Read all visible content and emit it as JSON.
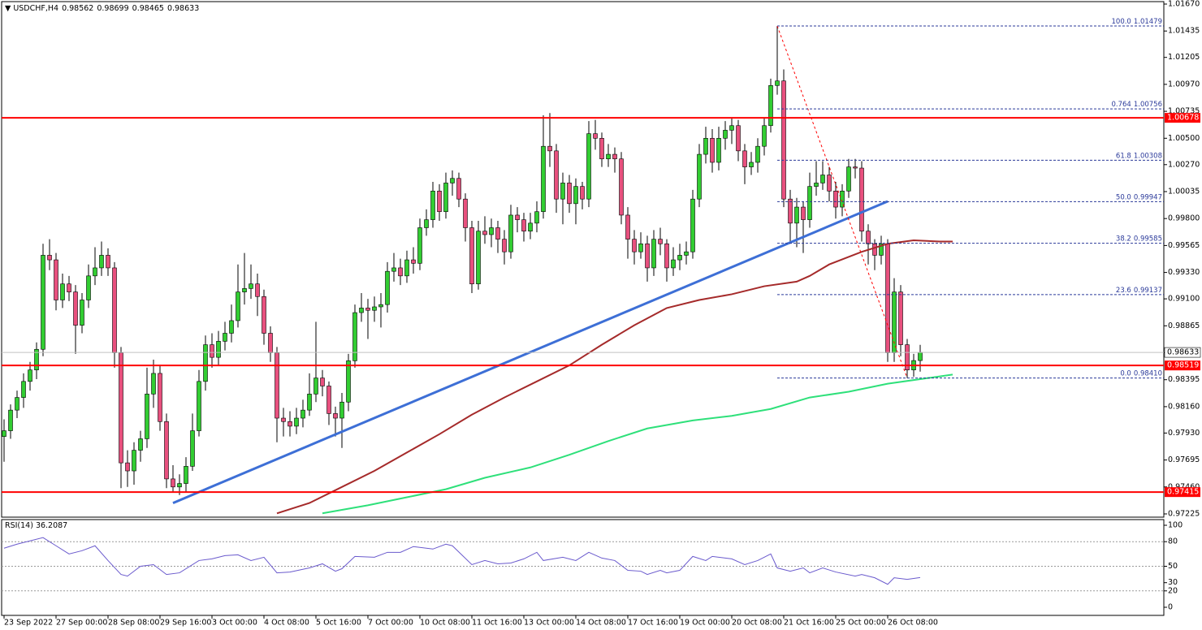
{
  "chart_data": {
    "type": "candlestick",
    "title": "USDCHF,H4",
    "bull_color": "#32cd32",
    "bear_color": "#e8507e",
    "ohlc": [
      [
        0.979,
        0.9805,
        0.9768,
        0.9795
      ],
      [
        0.9795,
        0.9818,
        0.9788,
        0.9813
      ],
      [
        0.9813,
        0.983,
        0.9806,
        0.9824
      ],
      [
        0.9824,
        0.9845,
        0.9815,
        0.9838
      ],
      [
        0.9838,
        0.9855,
        0.983,
        0.9848
      ],
      [
        0.9848,
        0.9872,
        0.984,
        0.9866
      ],
      [
        0.9866,
        0.9958,
        0.986,
        0.9948
      ],
      [
        0.9948,
        0.9962,
        0.9935,
        0.9944
      ],
      [
        0.9944,
        0.995,
        0.99,
        0.9909
      ],
      [
        0.9909,
        0.9932,
        0.9902,
        0.9923
      ],
      [
        0.9923,
        0.993,
        0.9908,
        0.9916
      ],
      [
        0.9916,
        0.9922,
        0.9862,
        0.9887
      ],
      [
        0.9887,
        0.9915,
        0.988,
        0.9909
      ],
      [
        0.9909,
        0.994,
        0.9902,
        0.993
      ],
      [
        0.993,
        0.9955,
        0.9922,
        0.9937
      ],
      [
        0.9937,
        0.996,
        0.993,
        0.9948
      ],
      [
        0.9948,
        0.9954,
        0.993,
        0.9937
      ],
      [
        0.9937,
        0.9942,
        0.985,
        0.9863
      ],
      [
        0.9863,
        0.9868,
        0.9745,
        0.9767
      ],
      [
        0.9767,
        0.9778,
        0.9746,
        0.976
      ],
      [
        0.976,
        0.9785,
        0.9748,
        0.9778
      ],
      [
        0.9778,
        0.9795,
        0.9768,
        0.9788
      ],
      [
        0.9788,
        0.985,
        0.978,
        0.9827
      ],
      [
        0.9827,
        0.9857,
        0.9815,
        0.9845
      ],
      [
        0.9845,
        0.9852,
        0.9795,
        0.9803
      ],
      [
        0.9803,
        0.981,
        0.9745,
        0.9753
      ],
      [
        0.9753,
        0.9765,
        0.9741,
        0.9746
      ],
      [
        0.9746,
        0.9757,
        0.9739,
        0.9749
      ],
      [
        0.9749,
        0.9772,
        0.9742,
        0.9764
      ],
      [
        0.9764,
        0.981,
        0.976,
        0.9795
      ],
      [
        0.9795,
        0.9848,
        0.979,
        0.9838
      ],
      [
        0.9838,
        0.9878,
        0.983,
        0.987
      ],
      [
        0.987,
        0.988,
        0.985,
        0.9859
      ],
      [
        0.9859,
        0.9882,
        0.9852,
        0.9873
      ],
      [
        0.9873,
        0.989,
        0.9865,
        0.988
      ],
      [
        0.988,
        0.9905,
        0.9872,
        0.9891
      ],
      [
        0.9891,
        0.994,
        0.9885,
        0.9916
      ],
      [
        0.9916,
        0.995,
        0.9905,
        0.9919
      ],
      [
        0.9919,
        0.994,
        0.991,
        0.9923
      ],
      [
        0.9923,
        0.9932,
        0.9895,
        0.9912
      ],
      [
        0.9912,
        0.9918,
        0.987,
        0.988
      ],
      [
        0.988,
        0.9886,
        0.9855,
        0.9863
      ],
      [
        0.9863,
        0.9868,
        0.9785,
        0.9806
      ],
      [
        0.9806,
        0.9815,
        0.979,
        0.9803
      ],
      [
        0.9803,
        0.9812,
        0.979,
        0.9799
      ],
      [
        0.9799,
        0.9815,
        0.9792,
        0.9806
      ],
      [
        0.9806,
        0.9822,
        0.9798,
        0.9813
      ],
      [
        0.9813,
        0.9845,
        0.9808,
        0.9827
      ],
      [
        0.9827,
        0.989,
        0.982,
        0.9841
      ],
      [
        0.9841,
        0.9848,
        0.9825,
        0.9834
      ],
      [
        0.9834,
        0.9838,
        0.98,
        0.981
      ],
      [
        0.981,
        0.9816,
        0.979,
        0.9806
      ],
      [
        0.9806,
        0.9828,
        0.978,
        0.982
      ],
      [
        0.982,
        0.9862,
        0.9812,
        0.9856
      ],
      [
        0.9856,
        0.9905,
        0.985,
        0.9898
      ],
      [
        0.9898,
        0.9915,
        0.989,
        0.9902
      ],
      [
        0.9902,
        0.991,
        0.9875,
        0.99
      ],
      [
        0.99,
        0.9912,
        0.989,
        0.9903
      ],
      [
        0.9903,
        0.9915,
        0.9885,
        0.9905
      ],
      [
        0.9905,
        0.9942,
        0.9898,
        0.9934
      ],
      [
        0.9934,
        0.995,
        0.9925,
        0.9937
      ],
      [
        0.9937,
        0.9945,
        0.9922,
        0.993
      ],
      [
        0.993,
        0.9952,
        0.9924,
        0.9944
      ],
      [
        0.9944,
        0.9955,
        0.9932,
        0.9941
      ],
      [
        0.9941,
        0.998,
        0.9935,
        0.9972
      ],
      [
        0.9972,
        0.9988,
        0.9965,
        0.9979
      ],
      [
        0.9979,
        1.0012,
        0.9972,
        1.0004
      ],
      [
        1.0004,
        1.001,
        0.9978,
        0.9986
      ],
      [
        0.9986,
        1.002,
        0.998,
        1.0011
      ],
      [
        1.0011,
        1.0022,
        1.0,
        1.0015
      ],
      [
        1.0015,
        1.002,
        0.999,
        0.9997
      ],
      [
        0.9997,
        1.0002,
        0.996,
        0.9972
      ],
      [
        0.9972,
        0.9978,
        0.9915,
        0.9923
      ],
      [
        0.9923,
        0.9978,
        0.9918,
        0.9969
      ],
      [
        0.9969,
        0.9982,
        0.9958,
        0.9966
      ],
      [
        0.9966,
        0.998,
        0.9955,
        0.9972
      ],
      [
        0.9972,
        0.9978,
        0.995,
        0.9962
      ],
      [
        0.9962,
        0.997,
        0.994,
        0.9951
      ],
      [
        0.9951,
        0.9992,
        0.9945,
        0.9983
      ],
      [
        0.9983,
        0.999,
        0.9968,
        0.9979
      ],
      [
        0.9979,
        0.9985,
        0.996,
        0.9969
      ],
      [
        0.9969,
        0.9985,
        0.9962,
        0.9976
      ],
      [
        0.9976,
        0.9995,
        0.9968,
        0.9986
      ],
      [
        0.9986,
        1.007,
        0.998,
        1.0043
      ],
      [
        1.0043,
        1.0072,
        1.0025,
        1.0039
      ],
      [
        1.0039,
        1.0045,
        0.9985,
        0.9997
      ],
      [
        0.9997,
        1.002,
        0.9975,
        1.0011
      ],
      [
        1.0011,
        1.0018,
        0.9985,
        0.9993
      ],
      [
        0.9993,
        1.0015,
        0.9975,
        1.0008
      ],
      [
        1.0008,
        1.0012,
        0.9988,
        0.9997
      ],
      [
        0.9997,
        1.0065,
        0.999,
        1.0054
      ],
      [
        1.0054,
        1.0066,
        1.004,
        1.005
      ],
      [
        1.005,
        1.0055,
        1.0025,
        1.0032
      ],
      [
        1.0032,
        1.0045,
        1.0025,
        1.0036
      ],
      [
        1.0036,
        1.0042,
        1.002,
        1.0032
      ],
      [
        1.0032,
        1.0038,
        0.9975,
        0.9983
      ],
      [
        0.9983,
        0.999,
        0.9945,
        0.9962
      ],
      [
        0.9962,
        0.997,
        0.994,
        0.9951
      ],
      [
        0.9951,
        0.9968,
        0.9945,
        0.9958
      ],
      [
        0.9958,
        0.9965,
        0.9925,
        0.9937
      ],
      [
        0.9937,
        0.997,
        0.993,
        0.9962
      ],
      [
        0.9962,
        0.9972,
        0.9948,
        0.9958
      ],
      [
        0.9958,
        0.9962,
        0.9925,
        0.9937
      ],
      [
        0.9937,
        0.9955,
        0.993,
        0.9944
      ],
      [
        0.9944,
        0.9958,
        0.9935,
        0.9948
      ],
      [
        0.9948,
        0.996,
        0.994,
        0.9951
      ],
      [
        0.9951,
        1.0005,
        0.9945,
        0.9997
      ],
      [
        0.9997,
        1.0045,
        0.999,
        1.0036
      ],
      [
        1.0036,
        1.006,
        1.0028,
        1.005
      ],
      [
        1.005,
        1.0058,
        1.002,
        1.0029
      ],
      [
        1.0029,
        1.006,
        1.0022,
        1.005
      ],
      [
        1.005,
        1.0065,
        1.004,
        1.0057
      ],
      [
        1.0057,
        1.0068,
        1.0045,
        1.0061
      ],
      [
        1.0061,
        1.0066,
        1.003,
        1.0039
      ],
      [
        1.0039,
        1.0045,
        1.001,
        1.0025
      ],
      [
        1.0025,
        1.0038,
        1.0018,
        1.0029
      ],
      [
        1.0029,
        1.005,
        1.002,
        1.0043
      ],
      [
        1.0043,
        1.0068,
        1.0035,
        1.0061
      ],
      [
        1.0061,
        1.0102,
        1.0055,
        1.0096
      ],
      [
        1.0096,
        1.01479,
        1.0088,
        1.01
      ],
      [
        1.01,
        1.011,
        0.999,
        0.9997
      ],
      [
        0.9997,
        1.0005,
        0.996,
        0.9976
      ],
      [
        0.9976,
        0.9998,
        0.9955,
        0.999
      ],
      [
        0.999,
        0.9995,
        0.995,
        0.9979
      ],
      [
        0.9979,
        1.002,
        0.9972,
        1.0008
      ],
      [
        1.0008,
        1.003,
        1.0,
        1.0011
      ],
      [
        1.0011,
        1.003,
        1.0005,
        1.0018
      ],
      [
        1.0018,
        1.0025,
        0.9995,
        1.0004
      ],
      [
        1.0004,
        1.0012,
        0.998,
        0.999
      ],
      [
        0.999,
        1.001,
        0.9982,
        1.0004
      ],
      [
        1.0004,
        1.0032,
        0.9998,
        1.0025
      ],
      [
        1.0025,
        1.0032,
        1.0015,
        1.0024
      ],
      [
        1.0024,
        1.003,
        0.996,
        0.9969
      ],
      [
        0.9969,
        0.9975,
        0.994,
        0.9958
      ],
      [
        0.9958,
        0.9962,
        0.9935,
        0.9948
      ],
      [
        0.9948,
        0.9965,
        0.994,
        0.9958
      ],
      [
        0.9958,
        0.9962,
        0.9855,
        0.9863
      ],
      [
        0.9863,
        0.9928,
        0.9855,
        0.9916
      ],
      [
        0.9916,
        0.9922,
        0.986,
        0.987
      ],
      [
        0.987,
        0.9875,
        0.9841,
        0.9848
      ],
      [
        0.9848,
        0.9862,
        0.9842,
        0.98562
      ],
      [
        0.98562,
        0.98699,
        0.98465,
        0.98633
      ]
    ],
    "ylim": [
      0.97225,
      1.0167
    ],
    "yticks": [
      {
        "value": 1.0167,
        "label": "1.01670"
      },
      1.01435,
      1.01205,
      {
        "value": 1.0097,
        "label": "1.00970"
      },
      1.00735,
      {
        "value": 1.005,
        "label": "1.00500"
      },
      {
        "value": 1.0027,
        "label": "1.00270"
      },
      1.00035,
      {
        "value": 0.998,
        "label": "0.99800"
      },
      0.99565,
      {
        "value": 0.9933,
        "label": "0.99330"
      },
      {
        "value": 0.991,
        "label": "0.99100"
      },
      0.98865,
      {
        "value": 0.9863,
        "label": "0.98630"
      },
      0.98395,
      {
        "value": 0.9816,
        "label": "0.98160"
      },
      {
        "value": 0.9793,
        "label": "0.97930"
      },
      0.97695,
      {
        "value": 0.9746,
        "label": "0.97460"
      },
      0.97225
    ],
    "xticks": [
      {
        "value": 0,
        "label": "23 Sep 2022"
      },
      {
        "value": 8,
        "label": "27 Sep 00:00"
      },
      {
        "value": 16,
        "label": "28 Sep 08:00"
      },
      {
        "value": 24,
        "label": "29 Sep 16:00"
      },
      {
        "value": 32,
        "label": "3 Oct 00:00"
      },
      {
        "value": 40,
        "label": "4 Oct 08:00"
      },
      {
        "value": 48,
        "label": "5 Oct 16:00"
      },
      {
        "value": 56,
        "label": "7 Oct 00:00"
      },
      {
        "value": 64,
        "label": "10 Oct 08:00"
      },
      {
        "value": 72,
        "label": "11 Oct 16:00"
      },
      {
        "value": 80,
        "label": "13 Oct 00:00"
      },
      {
        "value": 88,
        "label": "14 Oct 08:00"
      },
      {
        "value": 96,
        "label": "17 Oct 16:00"
      },
      {
        "value": 104,
        "label": "19 Oct 00:00"
      },
      {
        "value": 112,
        "label": "20 Oct 08:00"
      },
      {
        "value": 120,
        "label": "21 Oct 16:00"
      },
      {
        "value": 128,
        "label": "25 Oct 00:00"
      },
      {
        "value": 136,
        "label": "26 Oct 08:00"
      }
    ],
    "levels": [
      {
        "value": 1.00678,
        "color": "#ff0000"
      },
      {
        "value": 0.98519,
        "color": "#ff0000"
      },
      {
        "value": 0.97415,
        "color": "#ff0000"
      }
    ],
    "trendline": {
      "x": [
        26,
        136
      ],
      "values": [
        0.9732,
        0.9995
      ],
      "color": "#3d6fd6"
    },
    "moving_averages": [
      {
        "color": "#a52a2a",
        "x": [
          42,
          47,
          52,
          57,
          62,
          67,
          72,
          77,
          82,
          87,
          92,
          97,
          102,
          107,
          112,
          117,
          122,
          124,
          127,
          132,
          136,
          140,
          144,
          146
        ],
        "values": [
          0.9723,
          0.9732,
          0.9746,
          0.976,
          0.9776,
          0.9792,
          0.9809,
          0.9824,
          0.9838,
          0.9852,
          0.987,
          0.9887,
          0.9902,
          0.9909,
          0.9914,
          0.9921,
          0.9925,
          0.993,
          0.994,
          0.9951,
          0.9958,
          0.9961,
          0.996,
          0.996
        ]
      },
      {
        "color": "#2ee07a",
        "x": [
          49,
          56,
          62,
          68,
          74,
          81,
          87,
          93,
          99,
          106,
          112,
          118,
          124,
          130,
          136,
          146
        ],
        "values": [
          0.9723,
          0.973,
          0.9737,
          0.9744,
          0.9754,
          0.9763,
          0.9774,
          0.9786,
          0.9797,
          0.9804,
          0.9808,
          0.9814,
          0.9824,
          0.9829,
          0.9836,
          0.9844
        ]
      }
    ],
    "fibonacci": {
      "x": [
        119,
        139
      ],
      "color": "#ff0000",
      "level_color": "#2b3a9a",
      "levels": [
        {
          "level": "100.0",
          "value": 1.01479
        },
        {
          "level": "0.764",
          "value": 1.00756
        },
        {
          "level": "61.8",
          "value": 1.00308
        },
        {
          "level": "50.0",
          "value": 0.99947
        },
        {
          "level": "38.2",
          "value": 0.99585
        },
        {
          "level": "23.6",
          "value": 0.99137
        },
        {
          "level": "0.0",
          "value": 0.9841,
          "value_label": "0.98410"
        }
      ]
    },
    "rsi": {
      "title": "RSI(14)",
      "color": "#6a5acd",
      "ylim": [
        0,
        100
      ],
      "yticks": [
        100,
        80,
        50,
        30,
        20,
        0
      ],
      "levels": [
        80,
        50,
        20
      ],
      "x": [
        0,
        2,
        6,
        8,
        10,
        12,
        14,
        16,
        18,
        19,
        21,
        23,
        25,
        27,
        30,
        32,
        34,
        36,
        38,
        40,
        42,
        44,
        47,
        49,
        51,
        52,
        54,
        57,
        59,
        61,
        63,
        66,
        68,
        69,
        72,
        74,
        76,
        78,
        80,
        82,
        83,
        86,
        88,
        90,
        92,
        94,
        96,
        98,
        99,
        101,
        102,
        104,
        106,
        108,
        109,
        112,
        114,
        116,
        118,
        119,
        121,
        123,
        124,
        126,
        128,
        131,
        132,
        134,
        136,
        137,
        139,
        141
      ],
      "values": [
        72,
        77,
        85,
        75,
        65,
        69,
        75,
        57,
        40,
        38,
        50,
        52,
        40,
        42,
        57,
        59,
        63,
        64,
        57,
        61,
        42,
        43,
        48,
        53,
        44,
        47,
        62,
        61,
        67,
        67,
        74,
        71,
        77,
        75,
        52,
        57,
        53,
        54,
        59,
        67,
        57,
        61,
        57,
        67,
        60,
        57,
        45,
        44,
        40,
        45,
        42,
        45,
        62,
        57,
        62,
        59,
        52,
        57,
        65,
        48,
        44,
        48,
        42,
        48,
        43,
        38,
        40,
        36,
        28,
        36,
        34,
        36.2087
      ]
    }
  }
}
